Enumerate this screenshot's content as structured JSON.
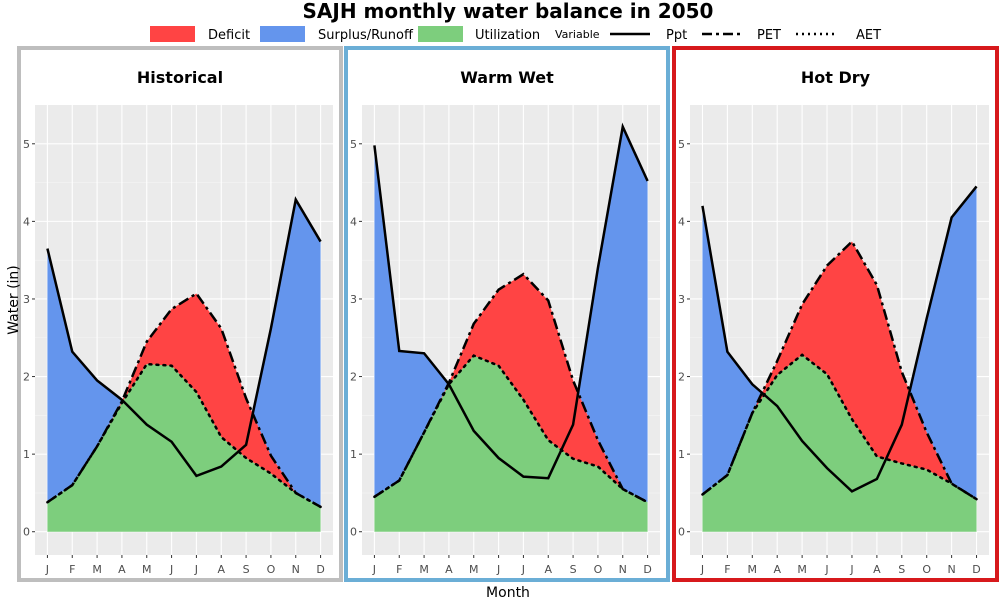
{
  "figure": {
    "title": "SAJH monthly water balance in 2050",
    "xlabel": "Month",
    "ylabel": "Water (in)"
  },
  "legend": {
    "fills": [
      {
        "label": "Deficit",
        "color": "#ff4444"
      },
      {
        "label": "Surplus/Runoff",
        "color": "#6495ed"
      },
      {
        "label": "Utilization",
        "color": "#7dce7d"
      }
    ],
    "variable_title": "Variable",
    "lines": [
      {
        "label": "Ppt",
        "style": "solid"
      },
      {
        "label": "PET",
        "style": "dashdot"
      },
      {
        "label": "AET",
        "style": "dotted"
      }
    ]
  },
  "chart_data": [
    {
      "type": "area",
      "title": "Historical",
      "border_color": "#bebebe",
      "categories": [
        "J",
        "F",
        "M",
        "A",
        "M",
        "J",
        "J",
        "A",
        "S",
        "O",
        "N",
        "D"
      ],
      "ylim": [
        -0.3,
        5.5
      ],
      "yticks": [
        0,
        1,
        2,
        3,
        4,
        5
      ],
      "grid": true,
      "series": [
        {
          "name": "Ppt",
          "values": [
            3.65,
            2.32,
            1.95,
            1.7,
            1.38,
            1.16,
            0.72,
            0.84,
            1.12,
            2.62,
            4.28,
            3.74
          ]
        },
        {
          "name": "PET",
          "values": [
            0.38,
            0.6,
            1.1,
            1.68,
            2.45,
            2.87,
            3.07,
            2.62,
            1.72,
            0.98,
            0.5,
            0.32
          ]
        },
        {
          "name": "AET",
          "values": [
            0.38,
            0.6,
            1.1,
            1.66,
            2.16,
            2.14,
            1.8,
            1.22,
            0.95,
            0.75,
            0.5,
            0.32
          ]
        }
      ]
    },
    {
      "type": "area",
      "title": "Warm Wet",
      "border_color": "#6baed6",
      "categories": [
        "J",
        "F",
        "M",
        "A",
        "M",
        "J",
        "J",
        "A",
        "S",
        "O",
        "N",
        "D"
      ],
      "ylim": [
        -0.3,
        5.5
      ],
      "yticks": [
        0,
        1,
        2,
        3,
        4,
        5
      ],
      "grid": true,
      "series": [
        {
          "name": "Ppt",
          "values": [
            4.98,
            2.33,
            2.3,
            1.9,
            1.3,
            0.95,
            0.71,
            0.69,
            1.38,
            3.4,
            5.22,
            4.52
          ]
        },
        {
          "name": "PET",
          "values": [
            0.45,
            0.66,
            1.28,
            1.92,
            2.68,
            3.12,
            3.32,
            2.98,
            1.95,
            1.18,
            0.55,
            0.38
          ]
        },
        {
          "name": "AET",
          "values": [
            0.45,
            0.66,
            1.28,
            1.9,
            2.27,
            2.14,
            1.7,
            1.18,
            0.94,
            0.84,
            0.55,
            0.38
          ]
        }
      ]
    },
    {
      "type": "area",
      "title": "Hot Dry",
      "border_color": "#d7191c",
      "categories": [
        "J",
        "F",
        "M",
        "A",
        "M",
        "J",
        "J",
        "A",
        "S",
        "O",
        "N",
        "D"
      ],
      "ylim": [
        -0.3,
        5.5
      ],
      "yticks": [
        0,
        1,
        2,
        3,
        4,
        5
      ],
      "grid": true,
      "series": [
        {
          "name": "Ppt",
          "values": [
            4.2,
            2.32,
            1.9,
            1.62,
            1.17,
            0.82,
            0.52,
            0.68,
            1.38,
            2.75,
            4.05,
            4.45
          ]
        },
        {
          "name": "PET",
          "values": [
            0.48,
            0.73,
            1.53,
            2.2,
            2.93,
            3.43,
            3.74,
            3.18,
            2.06,
            1.28,
            0.62,
            0.42
          ]
        },
        {
          "name": "AET",
          "values": [
            0.48,
            0.73,
            1.53,
            2.02,
            2.28,
            2.03,
            1.45,
            0.97,
            0.88,
            0.8,
            0.62,
            0.42
          ]
        }
      ]
    }
  ]
}
